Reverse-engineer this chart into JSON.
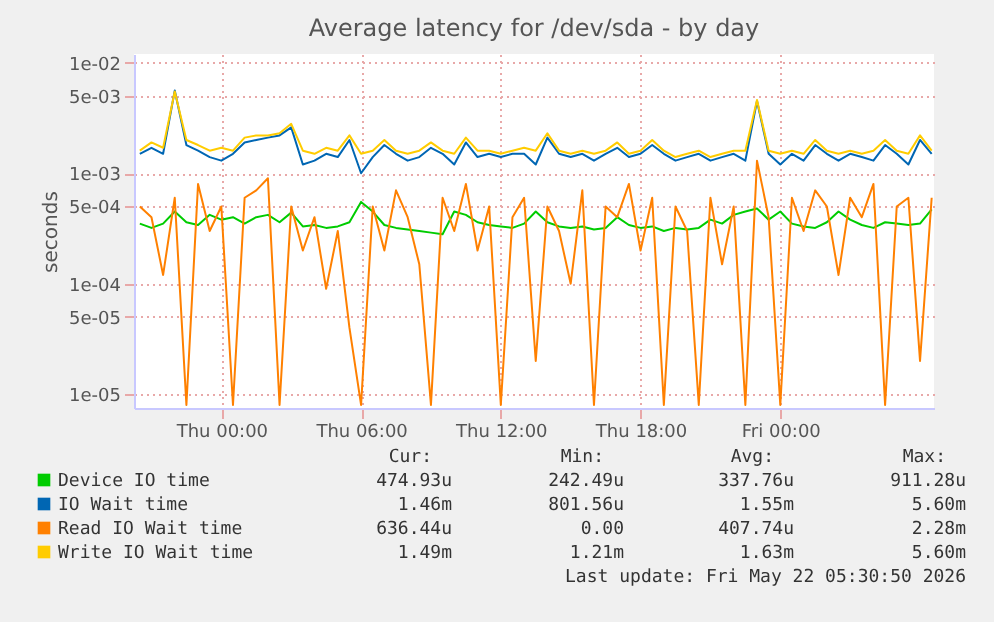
{
  "chart_data": {
    "type": "line",
    "title": "Average latency for /dev/sda - by day",
    "ylabel": "seconds",
    "log": "y",
    "grid": true,
    "legend": "bottom",
    "xlim": [
      "2026-05-20T20:15",
      "2026-05-22T06:36"
    ],
    "xticks": [
      {
        "value": "2026-05-21T00:00",
        "label": "Thu 00:00"
      },
      {
        "value": "2026-05-21T06:00",
        "label": "Thu 06:00"
      },
      {
        "value": "2026-05-21T12:00",
        "label": "Thu 12:00"
      },
      {
        "value": "2026-05-21T18:00",
        "label": "Thu 18:00"
      },
      {
        "value": "2026-05-22T00:00",
        "label": "Fri 00:00"
      }
    ],
    "ylim": [
      7.5e-06,
      0.012
    ],
    "yticks": [
      {
        "value": 0.01,
        "label": "1e-02"
      },
      {
        "value": 0.005,
        "label": "5e-03"
      },
      {
        "value": 0.001,
        "label": "1e-03"
      },
      {
        "value": 0.0005,
        "label": "5e-04"
      },
      {
        "value": 0.0001,
        "label": "1e-04"
      },
      {
        "value": 5e-05,
        "label": "5e-05"
      },
      {
        "value": 1e-05,
        "label": "1e-05"
      }
    ],
    "x": [
      "2026-05-20T20:30",
      "2026-05-20T21:00",
      "2026-05-20T21:30",
      "2026-05-20T22:00",
      "2026-05-20T22:30",
      "2026-05-20T23:00",
      "2026-05-20T23:30",
      "2026-05-21T00:00",
      "2026-05-21T00:30",
      "2026-05-21T01:00",
      "2026-05-21T01:30",
      "2026-05-21T02:00",
      "2026-05-21T02:30",
      "2026-05-21T03:00",
      "2026-05-21T03:30",
      "2026-05-21T04:00",
      "2026-05-21T04:30",
      "2026-05-21T05:00",
      "2026-05-21T05:30",
      "2026-05-21T06:00",
      "2026-05-21T06:30",
      "2026-05-21T07:00",
      "2026-05-21T07:30",
      "2026-05-21T08:00",
      "2026-05-21T08:30",
      "2026-05-21T09:00",
      "2026-05-21T09:30",
      "2026-05-21T10:00",
      "2026-05-21T10:30",
      "2026-05-21T11:00",
      "2026-05-21T11:30",
      "2026-05-21T12:00",
      "2026-05-21T12:30",
      "2026-05-21T13:00",
      "2026-05-21T13:30",
      "2026-05-21T14:00",
      "2026-05-21T14:30",
      "2026-05-21T15:00",
      "2026-05-21T15:30",
      "2026-05-21T16:00",
      "2026-05-21T16:30",
      "2026-05-21T17:00",
      "2026-05-21T17:30",
      "2026-05-21T18:00",
      "2026-05-21T18:30",
      "2026-05-21T19:00",
      "2026-05-21T19:30",
      "2026-05-21T20:00",
      "2026-05-21T20:30",
      "2026-05-21T21:00",
      "2026-05-21T21:30",
      "2026-05-21T22:00",
      "2026-05-21T22:30",
      "2026-05-21T23:00",
      "2026-05-21T23:30",
      "2026-05-22T00:00",
      "2026-05-22T00:30",
      "2026-05-22T01:00",
      "2026-05-22T01:30",
      "2026-05-22T02:00",
      "2026-05-22T02:30",
      "2026-05-22T03:00",
      "2026-05-22T03:30",
      "2026-05-22T04:00",
      "2026-05-22T04:30",
      "2026-05-22T05:00",
      "2026-05-22T05:30",
      "2026-05-22T06:00",
      "2026-05-22T06:30"
    ],
    "series": [
      {
        "name": "Device IO time",
        "color": "#00cc00",
        "values": [
          0.00035,
          0.00032,
          0.00035,
          0.00045,
          0.00036,
          0.00034,
          0.00042,
          0.00038,
          0.0004,
          0.00035,
          0.0004,
          0.00042,
          0.00036,
          0.00044,
          0.00033,
          0.00034,
          0.00032,
          0.00033,
          0.00036,
          0.00055,
          0.00045,
          0.00034,
          0.00032,
          0.00031,
          0.0003,
          0.00029,
          0.00028,
          0.00045,
          0.00042,
          0.00036,
          0.00034,
          0.00033,
          0.00032,
          0.00035,
          0.00045,
          0.00036,
          0.00033,
          0.00032,
          0.00033,
          0.00031,
          0.00032,
          0.0004,
          0.00034,
          0.00032,
          0.00033,
          0.0003,
          0.00032,
          0.00031,
          0.00032,
          0.00038,
          0.00035,
          0.00042,
          0.00045,
          0.00048,
          0.00038,
          0.00045,
          0.00035,
          0.00033,
          0.00032,
          0.00036,
          0.00045,
          0.00038,
          0.00034,
          0.00032,
          0.00036,
          0.00035,
          0.00034,
          0.00035,
          0.00047
        ]
      },
      {
        "name": "IO Wait time",
        "color": "#0066b3",
        "values": [
          0.0015,
          0.0017,
          0.0015,
          0.0056,
          0.0018,
          0.0016,
          0.0014,
          0.0013,
          0.0015,
          0.0019,
          0.002,
          0.0021,
          0.0022,
          0.0026,
          0.0012,
          0.0013,
          0.0015,
          0.0014,
          0.002,
          0.001,
          0.0014,
          0.0018,
          0.0015,
          0.0013,
          0.0014,
          0.0017,
          0.0015,
          0.0012,
          0.0019,
          0.0014,
          0.0015,
          0.0014,
          0.0015,
          0.0015,
          0.0012,
          0.0021,
          0.0015,
          0.0014,
          0.0015,
          0.0013,
          0.0015,
          0.0017,
          0.0014,
          0.0015,
          0.0018,
          0.0015,
          0.0013,
          0.0014,
          0.0015,
          0.0013,
          0.0014,
          0.0015,
          0.0013,
          0.0045,
          0.0015,
          0.0012,
          0.0015,
          0.0013,
          0.0018,
          0.0015,
          0.0013,
          0.0015,
          0.0014,
          0.0013,
          0.0018,
          0.0015,
          0.0012,
          0.002,
          0.0015
        ]
      },
      {
        "name": "Read IO Wait time",
        "color": "#ff8000",
        "values": [
          0.0005,
          0.0004,
          0.00012,
          0.0006,
          8e-06,
          0.0008,
          0.0003,
          0.0005,
          8e-06,
          0.0006,
          0.0007,
          0.0009,
          8e-06,
          0.0005,
          0.0002,
          0.0004,
          9e-05,
          0.0003,
          4e-05,
          8e-06,
          0.0005,
          0.0002,
          0.0007,
          0.0004,
          0.00015,
          8e-06,
          0.0006,
          0.0003,
          0.0008,
          0.0002,
          0.0005,
          8e-06,
          0.0004,
          0.0006,
          2e-05,
          0.0005,
          0.0003,
          0.0001,
          0.0007,
          8e-06,
          0.0005,
          0.0004,
          0.0008,
          0.0002,
          0.0006,
          8e-06,
          0.0005,
          0.0003,
          8e-06,
          0.0006,
          0.00015,
          0.0005,
          8e-06,
          0.0013,
          0.0004,
          8e-06,
          0.0006,
          0.0003,
          0.0007,
          0.0005,
          0.00012,
          0.0006,
          0.0004,
          0.0008,
          8e-06,
          0.0005,
          0.0006,
          2e-05,
          0.0006
        ]
      },
      {
        "name": "Write IO Wait time",
        "color": "#ffcc00",
        "values": [
          0.0016,
          0.0019,
          0.0017,
          0.0055,
          0.002,
          0.0018,
          0.0016,
          0.0017,
          0.0016,
          0.0021,
          0.0022,
          0.0022,
          0.0023,
          0.0028,
          0.0016,
          0.0015,
          0.0017,
          0.0016,
          0.0022,
          0.0015,
          0.0016,
          0.002,
          0.0016,
          0.0015,
          0.0016,
          0.0019,
          0.0016,
          0.0015,
          0.0021,
          0.0016,
          0.0016,
          0.0015,
          0.0016,
          0.0017,
          0.0016,
          0.0023,
          0.0016,
          0.0015,
          0.0016,
          0.0015,
          0.0016,
          0.0019,
          0.0015,
          0.0016,
          0.002,
          0.0016,
          0.0014,
          0.0015,
          0.0016,
          0.0014,
          0.0015,
          0.0016,
          0.0016,
          0.0046,
          0.0016,
          0.0015,
          0.0016,
          0.0015,
          0.002,
          0.0016,
          0.0015,
          0.0016,
          0.0015,
          0.0016,
          0.002,
          0.0016,
          0.0015,
          0.0022,
          0.0016
        ]
      }
    ],
    "annotations": [
      "Cur:",
      "Min:",
      "Avg:",
      "Max:",
      "474.93u",
      "242.49u",
      "337.76u",
      "911.28u",
      "1.46m",
      "801.56u",
      "1.55m",
      "5.60m",
      "636.44u",
      "0.00",
      "407.74u",
      "2.28m",
      "1.49m",
      "1.21m",
      "1.63m",
      "5.60m",
      "Last update: Fri May 22 05:30:50 2026"
    ]
  }
}
